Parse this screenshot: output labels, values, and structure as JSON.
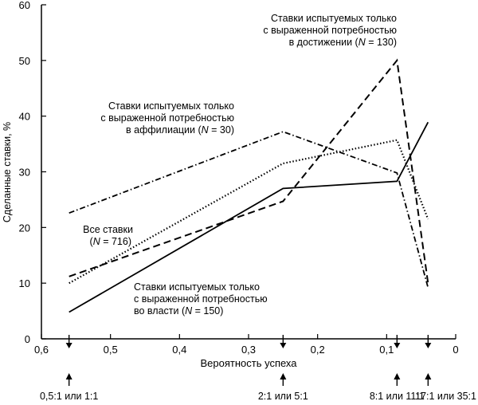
{
  "chart_data": {
    "type": "line",
    "xlabel": "Вероятность успеха",
    "ylabel": "Сделанные ставки, %",
    "xlim": [
      0.6,
      0
    ],
    "ylim": [
      0,
      60
    ],
    "x_ticks": [
      0.6,
      0.5,
      0.4,
      0.3,
      0.2,
      0.1,
      0
    ],
    "x_tick_labels": [
      "0,6",
      "0,5",
      "0,4",
      "0,3",
      "0,2",
      "0,1",
      "0"
    ],
    "y_ticks": [
      0,
      10,
      20,
      30,
      40,
      50,
      60
    ],
    "y_tick_labels": [
      "0",
      "10",
      "20",
      "30",
      "40",
      "50",
      "60"
    ],
    "grid": false,
    "odds_markers": [
      {
        "x": 0.56,
        "label": "0,5:1 или 1:1"
      },
      {
        "x": 0.25,
        "label": "2:1 или 5:1"
      },
      {
        "x": 0.085,
        "label": "8:1 или 11:1"
      },
      {
        "x": 0.04,
        "label": "17:1 или 35:1"
      }
    ],
    "series": [
      {
        "key": "all",
        "style": "dotted",
        "x": [
          0.56,
          0.25,
          0.085,
          0.04
        ],
        "y": [
          10,
          31.5,
          35.7,
          21.5
        ],
        "annotation": {
          "lines": [
            "Все ставки"
          ],
          "n_prefix": "(",
          "n_label": "N",
          "n_value": " = 716)"
        }
      },
      {
        "key": "achievement",
        "style": "dashed",
        "x": [
          0.56,
          0.25,
          0.085,
          0.04
        ],
        "y": [
          11.2,
          24.7,
          50,
          10
        ],
        "annotation": {
          "lines": [
            "Ставки испытуемых только",
            "с выраженной потребностью"
          ],
          "last_prefix": "в достижении (",
          "n_label": "N",
          "n_value": " = 130)"
        }
      },
      {
        "key": "affiliation",
        "style": "dashdot",
        "x": [
          0.56,
          0.25,
          0.085,
          0.04
        ],
        "y": [
          22.6,
          37.2,
          29.8,
          9.2
        ],
        "annotation": {
          "lines": [
            "Ставки испытуемых только",
            "с выраженной потребностью"
          ],
          "last_prefix": "в аффилиации (",
          "n_label": "N",
          "n_value": " = 30)"
        }
      },
      {
        "key": "power",
        "style": "solid",
        "x": [
          0.56,
          0.25,
          0.085,
          0.04
        ],
        "y": [
          4.8,
          27,
          28.3,
          38.9
        ],
        "annotation": {
          "lines": [
            "Ставки испытуемых только",
            "с выраженной потребностью"
          ],
          "last_prefix": "во власти (",
          "n_label": "N",
          "n_value": " = 150)"
        }
      }
    ]
  }
}
